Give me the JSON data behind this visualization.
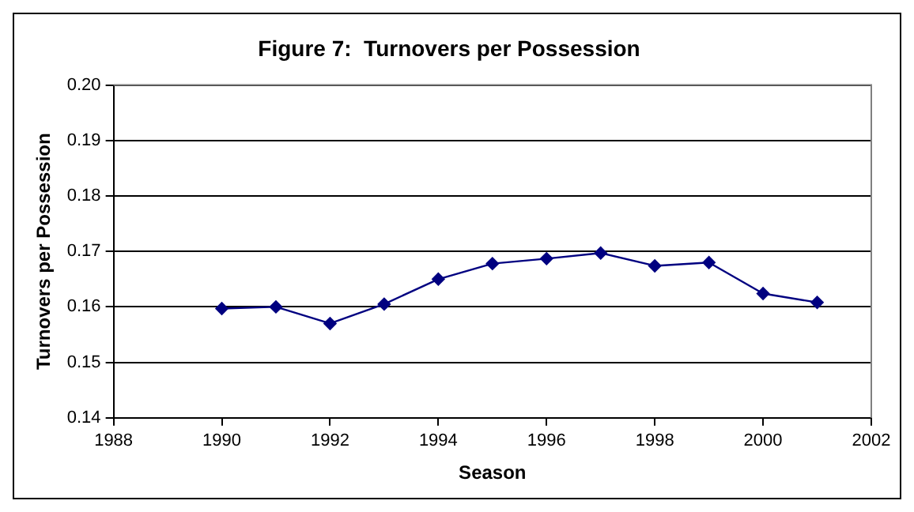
{
  "chart_data": {
    "type": "line",
    "title": "Figure 7:  Turnovers per Possession",
    "xlabel": "Season",
    "ylabel": "Turnovers per Possession",
    "x": [
      1990,
      1991,
      1992,
      1993,
      1994,
      1995,
      1996,
      1997,
      1998,
      1999,
      2000,
      2001
    ],
    "series": [
      {
        "color": "#000080",
        "values": [
          0.1597,
          0.16,
          0.157,
          0.1605,
          0.165,
          0.1678,
          0.1687,
          0.1697,
          0.1674,
          0.168,
          0.1624,
          0.1608
        ]
      }
    ],
    "xlim": [
      1988,
      2002
    ],
    "xticks": [
      1988,
      1990,
      1992,
      1994,
      1996,
      1998,
      2000,
      2002
    ],
    "ylim": [
      0.14,
      0.2
    ],
    "yticks": [
      {
        "value": 0.14,
        "label": "0.14"
      },
      {
        "value": 0.15,
        "label": "0.15"
      },
      {
        "value": 0.16,
        "label": "0.16"
      },
      {
        "value": 0.17,
        "label": "0.17"
      },
      {
        "value": 0.18,
        "label": "0.18"
      },
      {
        "value": 0.19,
        "label": "0.19"
      },
      {
        "value": 0.2,
        "label": "0.20"
      }
    ],
    "grid": "y",
    "legend": false,
    "marker": "diamond",
    "line_style": "solid"
  }
}
